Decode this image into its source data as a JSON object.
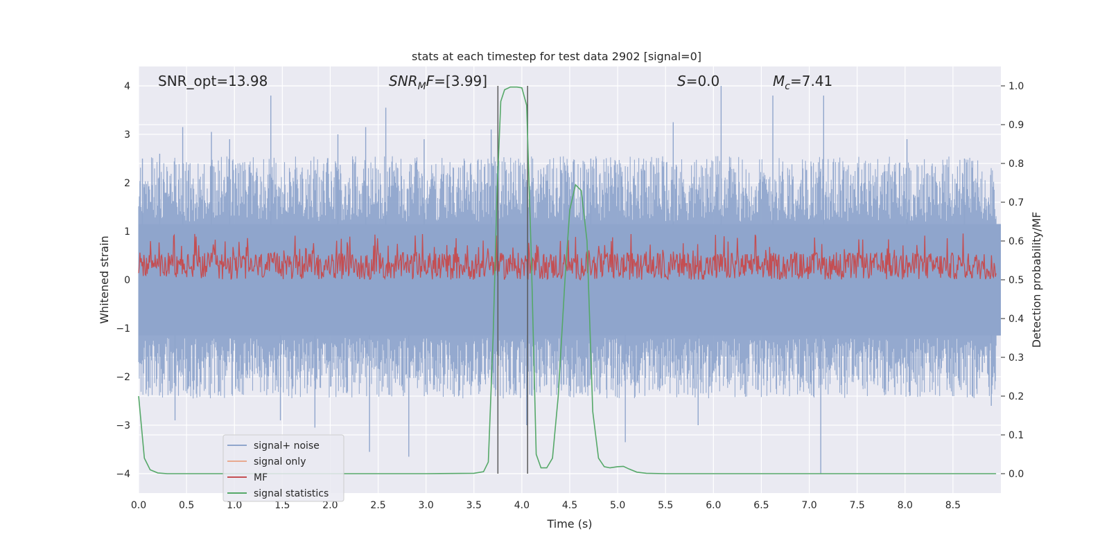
{
  "chart_data": {
    "type": "line",
    "title": "stats at each timestep for test data 2902 [signal=0]",
    "xlabel": "Time (s)",
    "ylabel": "Whitened strain",
    "ylabel_right": "Detection probability/MF",
    "xlim": [
      0.0,
      9.0
    ],
    "ylim": [
      -4.4,
      4.4
    ],
    "ylim_right": [
      -0.05,
      1.05
    ],
    "x_ticks": [
      0.0,
      0.5,
      1.0,
      1.5,
      2.0,
      2.5,
      3.0,
      3.5,
      4.0,
      4.5,
      5.0,
      5.5,
      6.0,
      6.5,
      7.0,
      7.5,
      8.0,
      8.5
    ],
    "x_tick_labels": [
      "0.0",
      "0.5",
      "1.0",
      "1.5",
      "2.0",
      "2.5",
      "3.0",
      "3.5",
      "4.0",
      "4.5",
      "5.0",
      "5.5",
      "6.0",
      "6.5",
      "7.0",
      "7.5",
      "8.0",
      "8.5"
    ],
    "y_ticks": [
      -4,
      -3,
      -2,
      -1,
      0,
      1,
      2,
      3,
      4
    ],
    "y_tick_labels": [
      "−4",
      "−3",
      "−2",
      "−1",
      "0",
      "1",
      "2",
      "3",
      "4"
    ],
    "y_ticks_right": [
      0.0,
      0.1,
      0.2,
      0.3,
      0.4,
      0.5,
      0.6,
      0.7,
      0.8,
      0.9,
      1.0
    ],
    "y_tick_labels_right": [
      "0.0",
      "0.1",
      "0.2",
      "0.3",
      "0.4",
      "0.5",
      "0.6",
      "0.7",
      "0.8",
      "0.9",
      "1.0"
    ],
    "grid": true,
    "legend_position": "bottom-left",
    "annotations": {
      "snr_opt": "SNR_opt=13.98",
      "snr_mf_main": "SNR",
      "snr_mf_sub": "M",
      "snr_mf_rest": "F=[3.99]",
      "s_main": "S",
      "s_rest": "=0.0",
      "mc_main": "M",
      "mc_sub": "c",
      "mc_rest": "=7.41"
    },
    "vertical_lines_x": [
      3.75,
      4.06
    ],
    "series": [
      {
        "name": "signal+ noise",
        "color": "#8fa5cc",
        "axis": "left",
        "style": "dense noise band, roughly between -2.5 and 2.7 with peaks near ±3.8",
        "spikes": [
          {
            "x": 0.04,
            "y": 2.5
          },
          {
            "x": 0.22,
            "y": 2.6
          },
          {
            "x": 0.38,
            "y": -2.9
          },
          {
            "x": 0.46,
            "y": 3.15
          },
          {
            "x": 0.76,
            "y": 3.05
          },
          {
            "x": 0.95,
            "y": 2.9
          },
          {
            "x": 1.38,
            "y": 3.8
          },
          {
            "x": 1.48,
            "y": -2.9
          },
          {
            "x": 1.84,
            "y": -3.05
          },
          {
            "x": 2.08,
            "y": 3.0
          },
          {
            "x": 2.37,
            "y": 3.15
          },
          {
            "x": 2.41,
            "y": -3.55
          },
          {
            "x": 2.58,
            "y": 3.55
          },
          {
            "x": 2.82,
            "y": -3.65
          },
          {
            "x": 2.98,
            "y": 2.9
          },
          {
            "x": 3.68,
            "y": 3.1
          },
          {
            "x": 4.05,
            "y": -3.0
          },
          {
            "x": 4.72,
            "y": 2.5
          },
          {
            "x": 5.08,
            "y": -3.35
          },
          {
            "x": 5.58,
            "y": 3.25
          },
          {
            "x": 5.84,
            "y": -3.0
          },
          {
            "x": 6.08,
            "y": 4.0
          },
          {
            "x": 6.62,
            "y": 3.8
          },
          {
            "x": 7.12,
            "y": -4.0
          },
          {
            "x": 7.15,
            "y": 3.8
          },
          {
            "x": 8.02,
            "y": 2.9
          },
          {
            "x": 8.62,
            "y": 2.5
          },
          {
            "x": 8.9,
            "y": -2.6
          }
        ]
      },
      {
        "name": "signal only",
        "color": "#e8a98f",
        "axis": "left",
        "values": []
      },
      {
        "name": "MF",
        "color": "#c44e52",
        "axis": "right",
        "style": "dense band roughly between 0.5 and 0.6 with peaks to 0.62"
      },
      {
        "name": "signal statistics",
        "color": "#55a868",
        "axis": "right",
        "x": [
          0.0,
          0.06,
          0.12,
          0.2,
          0.3,
          0.5,
          1.0,
          2.0,
          3.0,
          3.5,
          3.6,
          3.65,
          3.7,
          3.74,
          3.78,
          3.82,
          3.88,
          3.95,
          4.0,
          4.05,
          4.1,
          4.15,
          4.2,
          4.26,
          4.32,
          4.38,
          4.45,
          4.5,
          4.56,
          4.62,
          4.68,
          4.74,
          4.8,
          4.86,
          4.92,
          5.0,
          5.06,
          5.12,
          5.2,
          5.3,
          5.5,
          6.0,
          7.0,
          8.0,
          8.95
        ],
        "y": [
          0.2,
          0.04,
          0.01,
          0.002,
          0.0,
          0.0,
          0.0,
          0.0,
          0.0,
          0.001,
          0.005,
          0.03,
          0.35,
          0.72,
          0.96,
          0.99,
          0.997,
          0.997,
          0.995,
          0.95,
          0.55,
          0.05,
          0.015,
          0.015,
          0.04,
          0.2,
          0.5,
          0.68,
          0.745,
          0.73,
          0.6,
          0.16,
          0.04,
          0.018,
          0.015,
          0.018,
          0.019,
          0.012,
          0.004,
          0.001,
          0.0,
          0.0,
          0.0,
          0.0,
          0.0
        ]
      }
    ]
  }
}
